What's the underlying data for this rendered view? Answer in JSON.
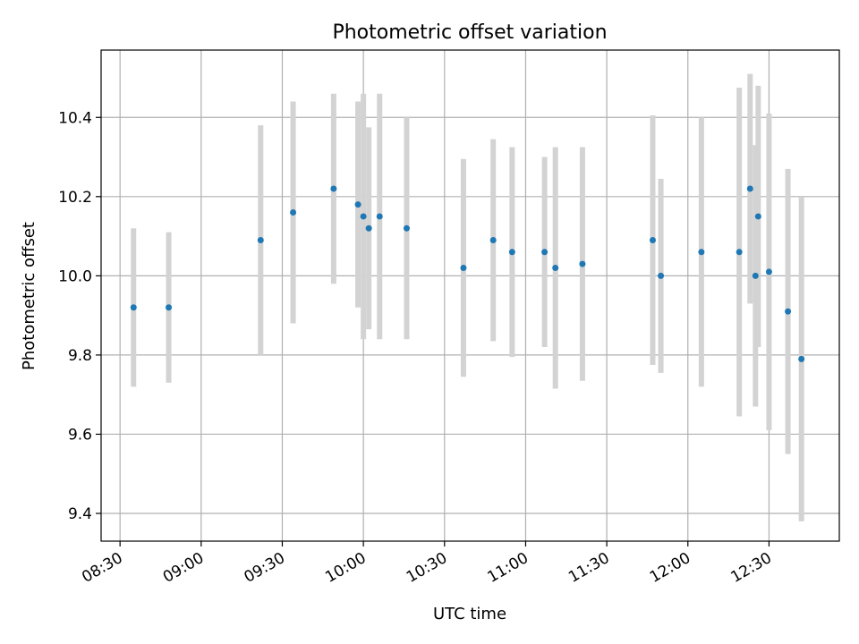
{
  "chart_data": {
    "type": "scatter",
    "title": "Photometric offset variation",
    "xlabel": "UTC time",
    "ylabel": "Photometric offset",
    "x_format": "HH:MM",
    "xlim": [
      "08:23",
      "12:56"
    ],
    "ylim": [
      9.33,
      10.57
    ],
    "x_ticks": [
      "08:30",
      "09:00",
      "09:30",
      "10:00",
      "10:30",
      "11:00",
      "11:30",
      "12:00",
      "12:30"
    ],
    "y_ticks": [
      9.4,
      9.6,
      9.8,
      10.0,
      10.2,
      10.4
    ],
    "y_tick_labels": [
      "9.4",
      "9.6",
      "9.8",
      "10.0",
      "10.2",
      "10.4"
    ],
    "grid": true,
    "point_color": "#1f77b4",
    "errorbar_color": "#d3d3d3",
    "points": [
      {
        "x": "08:35",
        "y": 9.92,
        "err": 0.2
      },
      {
        "x": "08:48",
        "y": 9.92,
        "err": 0.19
      },
      {
        "x": "09:22",
        "y": 10.09,
        "err": 0.29
      },
      {
        "x": "09:34",
        "y": 10.16,
        "err": 0.28
      },
      {
        "x": "09:49",
        "y": 10.22,
        "err": 0.24
      },
      {
        "x": "09:58",
        "y": 10.18,
        "err": 0.26
      },
      {
        "x": "10:00",
        "y": 10.15,
        "err": 0.31
      },
      {
        "x": "10:02",
        "y": 10.12,
        "err": 0.255
      },
      {
        "x": "10:06",
        "y": 10.15,
        "err": 0.31
      },
      {
        "x": "10:16",
        "y": 10.12,
        "err": 0.28
      },
      {
        "x": "10:37",
        "y": 10.02,
        "err": 0.275
      },
      {
        "x": "10:48",
        "y": 10.09,
        "err": 0.255
      },
      {
        "x": "10:55",
        "y": 10.06,
        "err": 0.265
      },
      {
        "x": "11:07",
        "y": 10.06,
        "err": 0.24
      },
      {
        "x": "11:11",
        "y": 10.02,
        "err": 0.305
      },
      {
        "x": "11:21",
        "y": 10.03,
        "err": 0.295
      },
      {
        "x": "11:47",
        "y": 10.09,
        "err": 0.315
      },
      {
        "x": "11:50",
        "y": 10.0,
        "err": 0.245
      },
      {
        "x": "12:05",
        "y": 10.06,
        "err": 0.34
      },
      {
        "x": "12:19",
        "y": 10.06,
        "err": 0.415
      },
      {
        "x": "12:23",
        "y": 10.22,
        "err": 0.29
      },
      {
        "x": "12:25",
        "y": 10.0,
        "err": 0.33
      },
      {
        "x": "12:26",
        "y": 10.15,
        "err": 0.33
      },
      {
        "x": "12:30",
        "y": 10.01,
        "err": 0.4
      },
      {
        "x": "12:37",
        "y": 9.91,
        "err": 0.36
      },
      {
        "x": "12:42",
        "y": 9.79,
        "err": 0.41
      }
    ]
  }
}
